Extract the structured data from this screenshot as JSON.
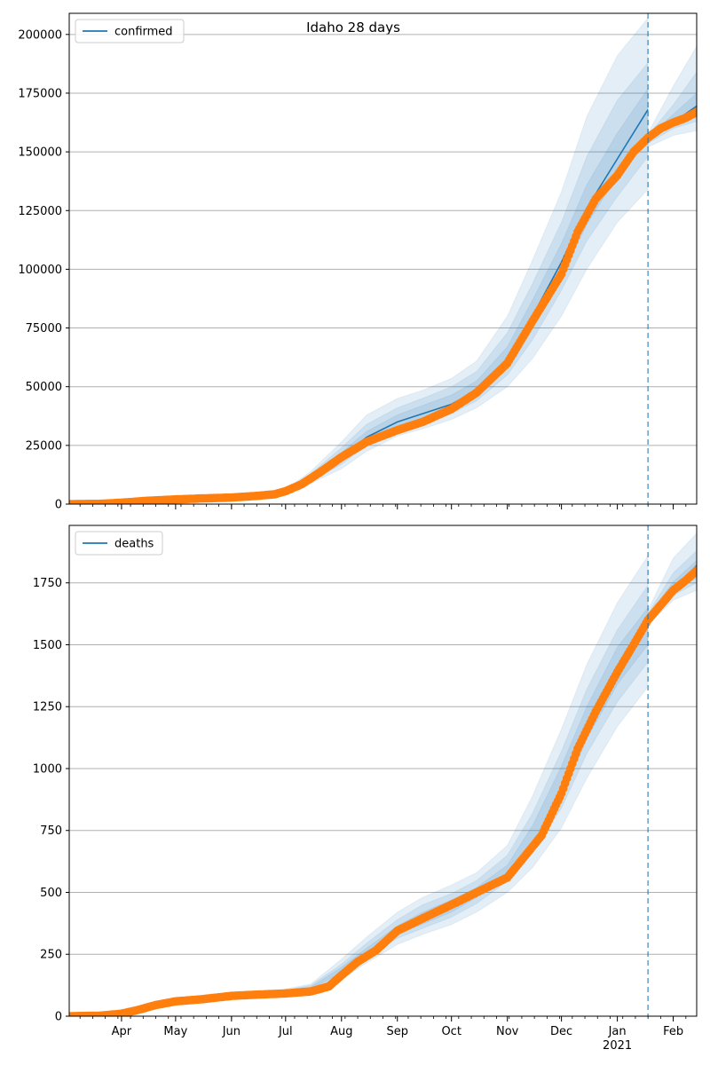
{
  "figure": {
    "title": "Idaho 28 days"
  },
  "colors": {
    "model_line": "#1f77b4",
    "band": "#1f77b4",
    "observed": "#ff7f0e",
    "grid": "#b0b0b0",
    "forecast_marker": "#1f77b4"
  },
  "x_axis": {
    "month_labels": [
      "Apr",
      "May",
      "Jun",
      "Jul",
      "Aug",
      "Sep",
      "Oct",
      "Nov",
      "Dec",
      "Jan",
      "Feb"
    ],
    "month_dates": [
      "2020-04-01",
      "2020-05-01",
      "2020-06-01",
      "2020-07-01",
      "2020-08-01",
      "2020-09-01",
      "2020-10-01",
      "2020-11-01",
      "2020-12-01",
      "2021-01-01",
      "2021-02-01"
    ],
    "year_label": "2021",
    "range": [
      "2020-03-03",
      "2021-02-14"
    ],
    "forecast_start": "2021-01-18"
  },
  "chart_data": [
    {
      "type": "line",
      "legend": "confirmed",
      "legend_position": "top-left",
      "grid": "horizontal",
      "ylim": [
        0,
        209000
      ],
      "yticks": [
        0,
        25000,
        50000,
        75000,
        100000,
        125000,
        150000,
        175000,
        200000
      ],
      "ytick_labels": [
        "0",
        "25000",
        "50000",
        "75000",
        "100000",
        "125000",
        "150000",
        "175000",
        "200000"
      ],
      "model": [
        [
          "2020-03-03",
          0
        ],
        [
          "2020-06-15",
          3800
        ],
        [
          "2020-07-01",
          5500
        ],
        [
          "2020-07-15",
          11000
        ],
        [
          "2020-08-01",
          20000
        ],
        [
          "2020-08-15",
          28500
        ],
        [
          "2020-09-01",
          35000
        ],
        [
          "2020-09-15",
          38500
        ],
        [
          "2020-10-01",
          42500
        ],
        [
          "2020-10-15",
          48500
        ],
        [
          "2020-11-01",
          62000
        ],
        [
          "2020-11-15",
          80000
        ],
        [
          "2020-12-01",
          103000
        ],
        [
          "2020-12-15",
          126000
        ],
        [
          "2021-01-01",
          147000
        ],
        [
          "2021-01-18",
          168000
        ]
      ],
      "model_after": [
        [
          "2021-01-18",
          155000
        ],
        [
          "2021-02-14",
          169500
        ]
      ],
      "bands_main": [
        {
          "date": "2020-07-01",
          "lo": [
            5000,
            5200,
            5400
          ],
          "hi": [
            6200,
            6000,
            5800
          ]
        },
        {
          "date": "2020-07-15",
          "lo": [
            8800,
            9500,
            10200
          ],
          "hi": [
            14000,
            13000,
            12000
          ]
        },
        {
          "date": "2020-08-01",
          "lo": [
            15000,
            17000,
            18500
          ],
          "hi": [
            26500,
            24000,
            22000
          ]
        },
        {
          "date": "2020-08-15",
          "lo": [
            22500,
            25000,
            27000
          ],
          "hi": [
            38000,
            34000,
            31000
          ]
        },
        {
          "date": "2020-09-01",
          "lo": [
            29000,
            31500,
            33000
          ],
          "hi": [
            45000,
            41000,
            38000
          ]
        },
        {
          "date": "2020-09-15",
          "lo": [
            32000,
            34500,
            36500
          ],
          "hi": [
            48500,
            45000,
            42000
          ]
        },
        {
          "date": "2020-10-01",
          "lo": [
            36000,
            38500,
            40500
          ],
          "hi": [
            53500,
            50000,
            46500
          ]
        },
        {
          "date": "2020-10-15",
          "lo": [
            41000,
            44000,
            46000
          ],
          "hi": [
            61000,
            56500,
            52500
          ]
        },
        {
          "date": "2020-11-01",
          "lo": [
            50000,
            55000,
            58500
          ],
          "hi": [
            80000,
            73000,
            67000
          ]
        },
        {
          "date": "2020-11-15",
          "lo": [
            62000,
            70000,
            75000
          ],
          "hi": [
            104000,
            94000,
            87000
          ]
        },
        {
          "date": "2020-12-01",
          "lo": [
            80000,
            91000,
            97000
          ],
          "hi": [
            133000,
            120000,
            111000
          ]
        },
        {
          "date": "2020-12-15",
          "lo": [
            100000,
            112000,
            119000
          ],
          "hi": [
            165000,
            148000,
            136000
          ]
        },
        {
          "date": "2021-01-01",
          "lo": [
            120000,
            131000,
            140000
          ],
          "hi": [
            191000,
            172000,
            158000
          ]
        },
        {
          "date": "2021-01-18",
          "lo": [
            134000,
            148000,
            158000
          ],
          "hi": [
            207000,
            188000,
            177000
          ]
        }
      ],
      "bands_after": [
        {
          "date": "2021-01-18",
          "lo": [
            152000,
            153500,
            154500
          ],
          "hi": [
            158000,
            157000,
            156000
          ]
        },
        {
          "date": "2021-02-01",
          "lo": [
            157000,
            160000,
            162000
          ],
          "hi": [
            178000,
            170000,
            166000
          ]
        },
        {
          "date": "2021-02-14",
          "lo": [
            159000,
            163000,
            166000
          ],
          "hi": [
            195000,
            184000,
            175000
          ]
        }
      ],
      "observed": [
        [
          "2020-03-03",
          0
        ],
        [
          "2020-03-20",
          100
        ],
        [
          "2020-04-01",
          600
        ],
        [
          "2020-04-15",
          1400
        ],
        [
          "2020-05-01",
          2000
        ],
        [
          "2020-05-15",
          2400
        ],
        [
          "2020-06-01",
          2800
        ],
        [
          "2020-06-15",
          3500
        ],
        [
          "2020-06-25",
          4200
        ],
        [
          "2020-07-01",
          5500
        ],
        [
          "2020-07-10",
          8500
        ],
        [
          "2020-07-20",
          13500
        ],
        [
          "2020-08-01",
          20000
        ],
        [
          "2020-08-15",
          26500
        ],
        [
          "2020-09-01",
          31500
        ],
        [
          "2020-09-15",
          35000
        ],
        [
          "2020-10-01",
          40500
        ],
        [
          "2020-10-15",
          47500
        ],
        [
          "2020-11-01",
          60000
        ],
        [
          "2020-11-15",
          78000
        ],
        [
          "2020-12-01",
          98000
        ],
        [
          "2020-12-10",
          116000
        ],
        [
          "2020-12-20",
          130000
        ],
        [
          "2021-01-01",
          140000
        ],
        [
          "2021-01-10",
          150000
        ],
        [
          "2021-01-18",
          156000
        ],
        [
          "2021-01-25",
          160000
        ],
        [
          "2021-02-01",
          162500
        ],
        [
          "2021-02-08",
          164500
        ],
        [
          "2021-02-14",
          167000
        ]
      ]
    },
    {
      "type": "line",
      "legend": "deaths",
      "legend_position": "top-left",
      "grid": "horizontal",
      "ylim": [
        0,
        1982
      ],
      "yticks": [
        0,
        250,
        500,
        750,
        1000,
        1250,
        1500,
        1750
      ],
      "ytick_labels": [
        "0",
        "250",
        "500",
        "750",
        "1000",
        "1250",
        "1500",
        "1750"
      ],
      "model_after": [
        [
          "2021-01-18",
          1610
        ],
        [
          "2021-02-14",
          1820
        ]
      ],
      "bands_main": [
        {
          "date": "2020-07-01",
          "lo": [
            88,
            92,
            95
          ],
          "hi": [
            110,
            105,
            100
          ]
        },
        {
          "date": "2020-07-15",
          "lo": [
            100,
            105,
            110
          ],
          "hi": [
            130,
            125,
            118
          ]
        },
        {
          "date": "2020-08-01",
          "lo": [
            150,
            165,
            175
          ],
          "hi": [
            230,
            210,
            198
          ]
        },
        {
          "date": "2020-08-15",
          "lo": [
            215,
            235,
            248
          ],
          "hi": [
            320,
            295,
            275
          ]
        },
        {
          "date": "2020-09-01",
          "lo": [
            290,
            315,
            330
          ],
          "hi": [
            420,
            390,
            365
          ]
        },
        {
          "date": "2020-09-15",
          "lo": [
            330,
            355,
            372
          ],
          "hi": [
            480,
            450,
            420
          ]
        },
        {
          "date": "2020-10-01",
          "lo": [
            370,
            400,
            420
          ],
          "hi": [
            530,
            495,
            470
          ]
        },
        {
          "date": "2020-10-15",
          "lo": [
            420,
            455,
            480
          ],
          "hi": [
            580,
            548,
            520
          ]
        },
        {
          "date": "2020-11-01",
          "lo": [
            500,
            545,
            570
          ],
          "hi": [
            690,
            650,
            610
          ]
        },
        {
          "date": "2020-11-15",
          "lo": [
            600,
            660,
            700
          ],
          "hi": [
            890,
            820,
            770
          ]
        },
        {
          "date": "2020-12-01",
          "lo": [
            760,
            840,
            880
          ],
          "hi": [
            1160,
            1070,
            1010
          ]
        },
        {
          "date": "2020-12-15",
          "lo": [
            960,
            1060,
            1120
          ],
          "hi": [
            1420,
            1320,
            1250
          ]
        },
        {
          "date": "2021-01-01",
          "lo": [
            1170,
            1270,
            1340
          ],
          "hi": [
            1670,
            1560,
            1490
          ]
        },
        {
          "date": "2021-01-18",
          "lo": [
            1330,
            1430,
            1500
          ],
          "hi": [
            1860,
            1740,
            1650
          ]
        }
      ],
      "bands_after": [
        {
          "date": "2021-01-18",
          "lo": [
            1580,
            1595,
            1602
          ],
          "hi": [
            1640,
            1625,
            1615
          ]
        },
        {
          "date": "2021-02-01",
          "lo": [
            1680,
            1700,
            1715
          ],
          "hi": [
            1850,
            1790,
            1755
          ]
        },
        {
          "date": "2021-02-14",
          "lo": [
            1720,
            1750,
            1770
          ],
          "hi": [
            1950,
            1880,
            1840
          ]
        }
      ],
      "observed": [
        [
          "2020-03-03",
          0
        ],
        [
          "2020-03-20",
          2
        ],
        [
          "2020-04-01",
          10
        ],
        [
          "2020-04-10",
          25
        ],
        [
          "2020-04-20",
          45
        ],
        [
          "2020-05-01",
          60
        ],
        [
          "2020-05-15",
          68
        ],
        [
          "2020-06-01",
          82
        ],
        [
          "2020-06-15",
          87
        ],
        [
          "2020-07-01",
          92
        ],
        [
          "2020-07-15",
          100
        ],
        [
          "2020-07-25",
          120
        ],
        [
          "2020-08-01",
          165
        ],
        [
          "2020-08-10",
          220
        ],
        [
          "2020-08-20",
          265
        ],
        [
          "2020-09-01",
          345
        ],
        [
          "2020-09-15",
          395
        ],
        [
          "2020-10-01",
          450
        ],
        [
          "2020-10-15",
          500
        ],
        [
          "2020-11-01",
          560
        ],
        [
          "2020-11-10",
          640
        ],
        [
          "2020-11-20",
          730
        ],
        [
          "2020-12-01",
          900
        ],
        [
          "2020-12-10",
          1080
        ],
        [
          "2020-12-20",
          1230
        ],
        [
          "2021-01-01",
          1390
        ],
        [
          "2021-01-10",
          1500
        ],
        [
          "2021-01-18",
          1600
        ],
        [
          "2021-01-25",
          1660
        ],
        [
          "2021-02-01",
          1720
        ],
        [
          "2021-02-08",
          1760
        ],
        [
          "2021-02-14",
          1800
        ]
      ]
    }
  ]
}
